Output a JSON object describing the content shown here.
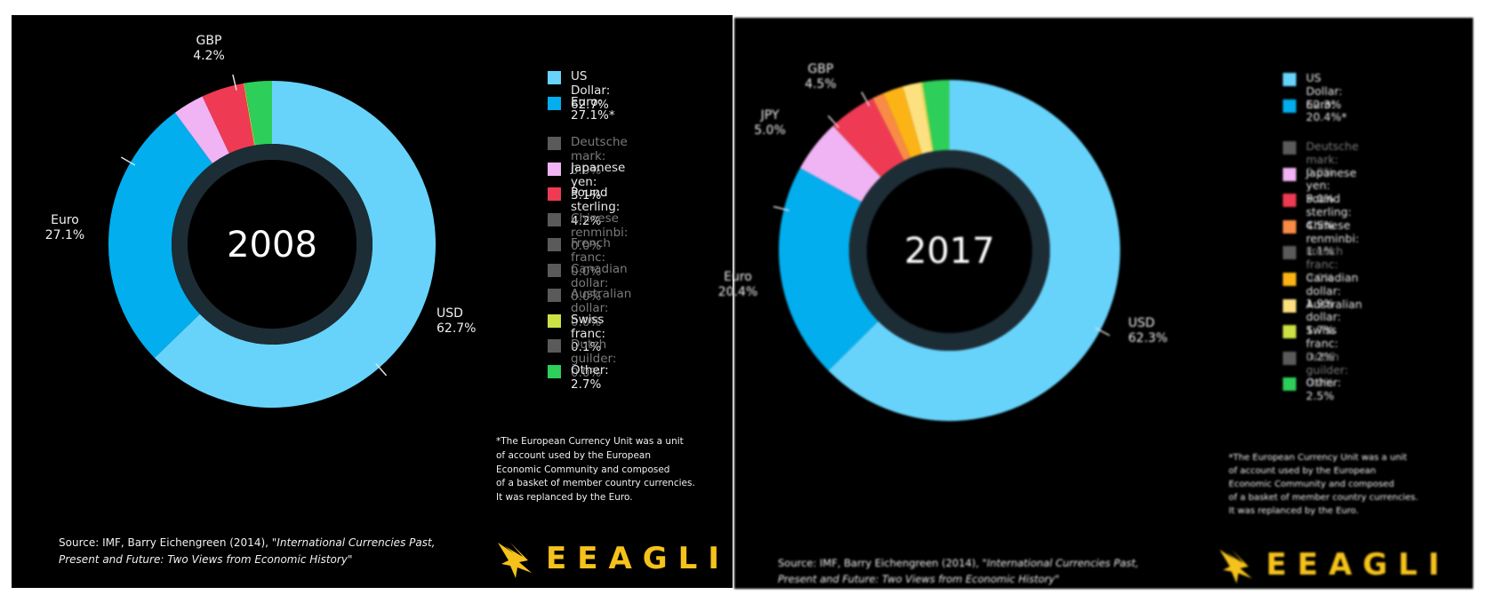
{
  "chart_data": [
    {
      "type": "pie",
      "variant": "donut",
      "center_label": "2008",
      "slices": [
        {
          "name": "US Dollar",
          "value": 62.7,
          "color": "#67d3fb"
        },
        {
          "name": "Euro",
          "value": 27.1,
          "color": "#03aeee"
        },
        {
          "name": "Japanese yen",
          "value": 3.1,
          "color": "#f0b3f3"
        },
        {
          "name": "Pound sterling",
          "value": 4.2,
          "color": "#ee3b53"
        },
        {
          "name": "Swiss franc",
          "value": 0.1,
          "color": "#cde145"
        },
        {
          "name": "Other",
          "value": 2.7,
          "color": "#2ece5b"
        }
      ],
      "callouts": [
        {
          "label": "USD",
          "value_text": "62.7%"
        },
        {
          "label": "Euro",
          "value_text": "27.1%"
        },
        {
          "label": "GBP",
          "value_text": "4.2%"
        }
      ],
      "legend": [
        {
          "label": "US Dollar: 62.7%",
          "color": "#67d3fb",
          "zero": false
        },
        {
          "label": "Euro:\n27.1%*",
          "color": "#03aeee",
          "zero": false
        },
        {
          "label": "Deutsche mark: 0.0%",
          "color": "#5a5a5a",
          "zero": true
        },
        {
          "label": "Japanese yen: 3.1%",
          "color": "#f0b3f3",
          "zero": false
        },
        {
          "label": "Pound sterling: 4.2%",
          "color": "#ee3b53",
          "zero": false
        },
        {
          "label": "Chinese renminbi: 0.0%",
          "color": "#5a5a5a",
          "zero": true
        },
        {
          "label": "French franc: 0.0%",
          "color": "#5a5a5a",
          "zero": true
        },
        {
          "label": "Canadian dollar: 0.0%",
          "color": "#5a5a5a",
          "zero": true
        },
        {
          "label": "Australian dollar: 0.0%",
          "color": "#5a5a5a",
          "zero": true
        },
        {
          "label": "Swiss franc: 0.1%",
          "color": "#cde145",
          "zero": false
        },
        {
          "label": "Dutch guilder: 0.0%",
          "color": "#5a5a5a",
          "zero": true
        },
        {
          "label": "Other: 2.7%",
          "color": "#2ece5b",
          "zero": false
        }
      ]
    },
    {
      "type": "pie",
      "variant": "donut",
      "center_label": "2017",
      "slices": [
        {
          "name": "US Dollar",
          "value": 62.3,
          "color": "#67d3fb"
        },
        {
          "name": "Euro",
          "value": 20.4,
          "color": "#03aeee"
        },
        {
          "name": "Japanese yen",
          "value": 5.0,
          "color": "#f0b3f3"
        },
        {
          "name": "Pound sterling",
          "value": 4.5,
          "color": "#ee3b53"
        },
        {
          "name": "Chinese renminbi",
          "value": 1.1,
          "color": "#f98b47"
        },
        {
          "name": "Canadian dollar",
          "value": 1.9,
          "color": "#fbb316"
        },
        {
          "name": "Australian dollar",
          "value": 1.7,
          "color": "#fde07f"
        },
        {
          "name": "Swiss franc",
          "value": 0.2,
          "color": "#cde145"
        },
        {
          "name": "Other",
          "value": 2.5,
          "color": "#2ece5b"
        }
      ],
      "callouts": [
        {
          "label": "USD",
          "value_text": "62.3%"
        },
        {
          "label": "Euro",
          "value_text": "20.4%"
        },
        {
          "label": "JPY",
          "value_text": "5.0%"
        },
        {
          "label": "GBP",
          "value_text": "4.5%"
        }
      ],
      "legend": [
        {
          "label": "US Dollar: 62.3%",
          "color": "#67d3fb",
          "zero": false
        },
        {
          "label": "Euro:\n20.4%*",
          "color": "#03aeee",
          "zero": false
        },
        {
          "label": "Deutsche mark: 0.0%",
          "color": "#5a5a5a",
          "zero": true
        },
        {
          "label": "Japanese yen: 5.0%",
          "color": "#f0b3f3",
          "zero": false
        },
        {
          "label": "Pound sterling: 4.5%",
          "color": "#ee3b53",
          "zero": false
        },
        {
          "label": "Chinese renminbi: 1.1%",
          "color": "#f98b47",
          "zero": false
        },
        {
          "label": "French franc: 0.0%",
          "color": "#5a5a5a",
          "zero": true
        },
        {
          "label": "Canadian dollar: 1.9%",
          "color": "#fbb316",
          "zero": false
        },
        {
          "label": "Australian dollar: 1.7%",
          "color": "#fde07f",
          "zero": false
        },
        {
          "label": "Swiss franc: 0.2%",
          "color": "#cde145",
          "zero": false
        },
        {
          "label": "Dutch guilder: 0.0%",
          "color": "#5a5a5a",
          "zero": true
        },
        {
          "label": "Other: 2.5%",
          "color": "#2ece5b",
          "zero": false
        }
      ]
    }
  ],
  "footnote": "*The European Currency Unit was a unit\nof account used by the European\nEconomic Community and composed\nof a basket of member country currencies.\nIt was replanced by the Euro.",
  "source": {
    "prefix": "Source: IMF, Barry Eichengreen (2014),",
    "title_line1": "\"International Currencies Past,",
    "title_line2": "Present and Future: Two Views from Economic History\""
  },
  "logo": {
    "text": "EEAGLI",
    "color": "#f5c21b"
  },
  "colors": {
    "background": "#000000",
    "inner_ring": "#1d2d36"
  }
}
